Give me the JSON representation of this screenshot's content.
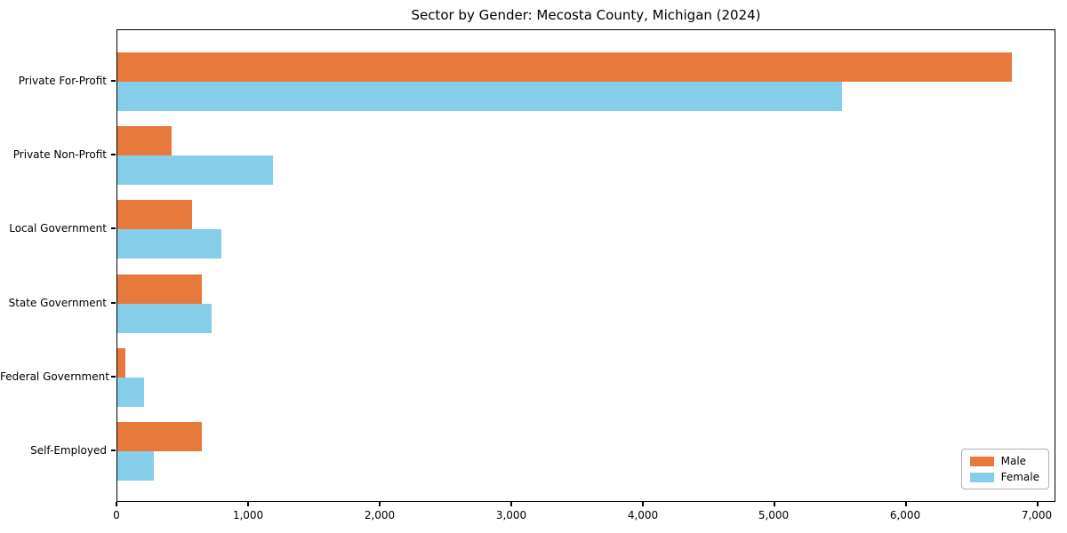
{
  "chart_data": {
    "type": "bar",
    "orientation": "horizontal",
    "title": "Sector by Gender: Mecosta County, Michigan (2024)",
    "categories": [
      "Private For-Profit",
      "Private Non-Profit",
      "Local Government",
      "State Government",
      "Federal Government",
      "Self-Employed"
    ],
    "series": [
      {
        "name": "Male",
        "color": "#e8793d",
        "values": [
          6800,
          410,
          570,
          640,
          60,
          645
        ]
      },
      {
        "name": "Female",
        "color": "#87ceeb",
        "values": [
          5510,
          1180,
          790,
          720,
          200,
          275
        ]
      }
    ],
    "xlim": [
      0,
      7140
    ],
    "x_ticks": [
      0,
      1000,
      2000,
      3000,
      4000,
      5000,
      6000,
      7000
    ],
    "x_tick_labels": [
      "0",
      "1,000",
      "2,000",
      "3,000",
      "4,000",
      "5,000",
      "6,000",
      "7,000"
    ],
    "ylabel": "",
    "xlabel": "",
    "grid": false,
    "legend_position": "lower right",
    "colors": {
      "male": "#e8793d",
      "female": "#87ceeb",
      "spine": "#000000",
      "background": "#ffffff",
      "legend_border": "#b0b0b0"
    }
  }
}
